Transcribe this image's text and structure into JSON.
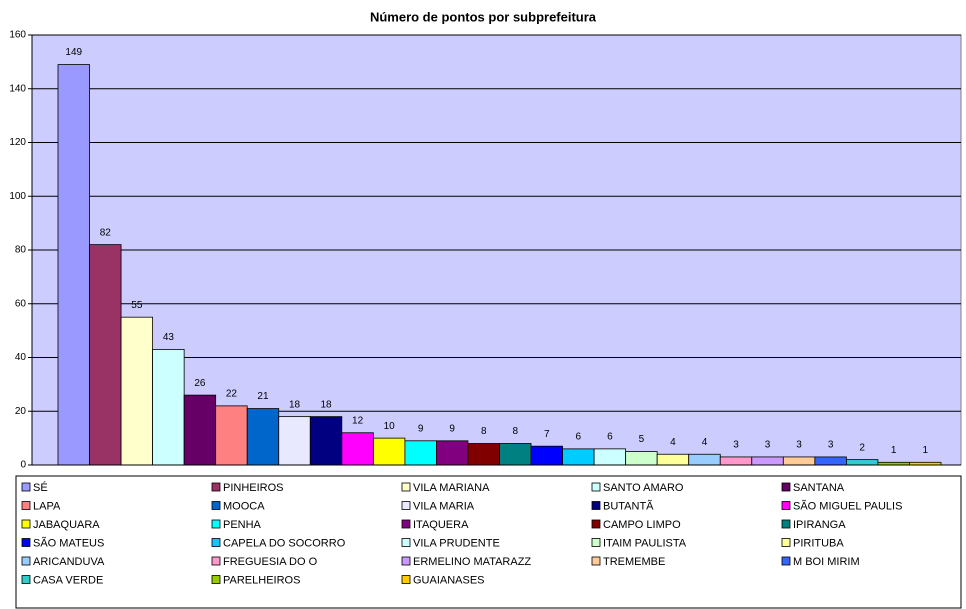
{
  "chart_data": {
    "type": "bar",
    "title": "Número de pontos por subprefeitura",
    "ylim": [
      0,
      160
    ],
    "yticks": [
      0,
      20,
      40,
      60,
      80,
      100,
      120,
      140,
      160
    ],
    "grid": true,
    "legend": "bottom",
    "plot_background": "#ccccff",
    "series": [
      {
        "name": "SÉ",
        "color": "#9999ff",
        "values": [
          149
        ]
      },
      {
        "name": "PINHEIROS",
        "color": "#993366",
        "values": [
          82
        ]
      },
      {
        "name": "VILA MARIANA",
        "color": "#ffffcc",
        "values": [
          55
        ]
      },
      {
        "name": "SANTO AMARO",
        "color": "#ccffff",
        "values": [
          43
        ]
      },
      {
        "name": "SANTANA",
        "color": "#660066",
        "values": [
          26
        ]
      },
      {
        "name": "LAPA",
        "color": "#ff8080",
        "values": [
          22
        ]
      },
      {
        "name": "MOOCA",
        "color": "#0066cc",
        "values": [
          21
        ]
      },
      {
        "name": "VILA MARIA",
        "color": "#e8e8ff",
        "values": [
          18
        ]
      },
      {
        "name": "BUTANTÃ",
        "color": "#000080",
        "values": [
          18
        ]
      },
      {
        "name": "SÃO MIGUEL PAULIS",
        "color": "#ff00ff",
        "values": [
          12
        ]
      },
      {
        "name": "JABAQUARA",
        "color": "#ffff00",
        "values": [
          10
        ]
      },
      {
        "name": "PENHA",
        "color": "#00ffff",
        "values": [
          9
        ]
      },
      {
        "name": "ITAQUERA",
        "color": "#800080",
        "values": [
          9
        ]
      },
      {
        "name": "CAMPO LIMPO",
        "color": "#800000",
        "values": [
          8
        ]
      },
      {
        "name": "IPIRANGA",
        "color": "#008080",
        "values": [
          8
        ]
      },
      {
        "name": "SÃO MATEUS",
        "color": "#0000ff",
        "values": [
          7
        ]
      },
      {
        "name": "CAPELA DO SOCORRO",
        "color": "#00ccff",
        "values": [
          6
        ]
      },
      {
        "name": "VILA PRUDENTE",
        "color": "#ccffff",
        "values": [
          6
        ]
      },
      {
        "name": "ITAIM PAULISTA",
        "color": "#ccffcc",
        "values": [
          5
        ]
      },
      {
        "name": "PIRITUBA",
        "color": "#ffff99",
        "values": [
          4
        ]
      },
      {
        "name": "ARICANDUVA",
        "color": "#99ccff",
        "values": [
          4
        ]
      },
      {
        "name": "FREGUESIA DO O",
        "color": "#ff99cc",
        "values": [
          3
        ]
      },
      {
        "name": "ERMELINO MATARAZZ",
        "color": "#cc99ff",
        "values": [
          3
        ]
      },
      {
        "name": "TREMEMBE",
        "color": "#ffcc99",
        "values": [
          3
        ]
      },
      {
        "name": "M BOI MIRIM",
        "color": "#3366ff",
        "values": [
          3
        ]
      },
      {
        "name": "CASA VERDE",
        "color": "#33cccc",
        "values": [
          2
        ]
      },
      {
        "name": "PARELHEIROS",
        "color": "#99cc00",
        "values": [
          1
        ]
      },
      {
        "name": "GUAIANASES",
        "color": "#ffcc00",
        "values": [
          1
        ]
      }
    ]
  }
}
